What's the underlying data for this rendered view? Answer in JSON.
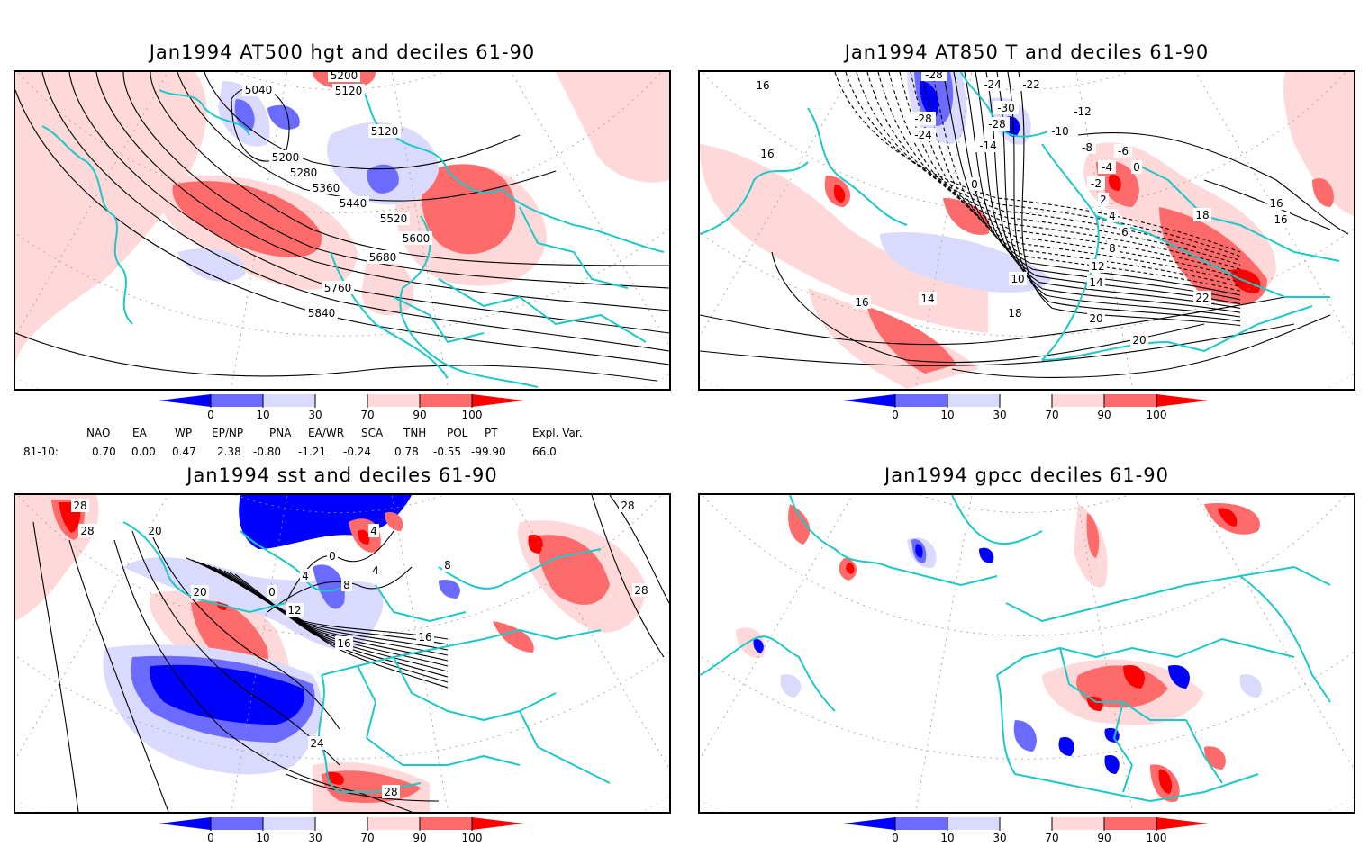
{
  "panels": [
    {
      "id": "z500",
      "title": "Jan1994 AT500 hgt and deciles 61-90",
      "variable": "500 hPa geopotential height",
      "contour_labels": [
        "5040",
        "5200",
        "5120",
        "5120",
        "5200",
        "5280",
        "5360",
        "5440",
        "5520",
        "5600",
        "5680",
        "5760",
        "5840"
      ]
    },
    {
      "id": "t850",
      "title": "Jan1994 AT850 T and deciles 61-90",
      "variable": "850 hPa temperature",
      "contour_labels": [
        "-28",
        "-28",
        "-24",
        "-24",
        "-30",
        "-28",
        "-22",
        "-14",
        "-12",
        "-10",
        "-8",
        "-6",
        "-4",
        "-2",
        "0",
        "0",
        "2",
        "4",
        "6",
        "8",
        "10",
        "12",
        "14",
        "14",
        "16",
        "16",
        "16",
        "16",
        "16",
        "18",
        "18",
        "20",
        "20",
        "22"
      ]
    },
    {
      "id": "sst",
      "title": "Jan1994 sst and deciles 61-90",
      "variable": "sea surface temperature",
      "contour_labels": [
        "28",
        "28",
        "20",
        "20",
        "0",
        "0",
        "4",
        "4",
        "8",
        "12",
        "16",
        "16",
        "24",
        "28",
        "28",
        "28",
        "4",
        "8"
      ]
    },
    {
      "id": "gpcc",
      "title": "Jan1994 gpcc deciles 61-90",
      "variable": "precipitation",
      "contour_labels": []
    }
  ],
  "colorbar": {
    "ticks": [
      "0",
      "10",
      "30",
      "70",
      "90",
      "100"
    ],
    "colors": {
      "below_0": "#0000ff",
      "0_10": "#6b6bff",
      "10_30": "#dadafe",
      "30_70": "#ffffff",
      "70_90": "#ffd9d9",
      "90_100": "#ff6b6b",
      "above_100": "#ff0000"
    }
  },
  "colors": {
    "coast": "#1ec8c8",
    "contour": "#000000",
    "grid": "#9a9a9a"
  },
  "indices": {
    "headers": [
      "NAO",
      "EA",
      "WP",
      "EP/NP",
      "PNA",
      "EA/WR",
      "SCA",
      "TNH",
      "POL",
      "PT",
      "Expl. Var."
    ],
    "row_label": "81-10:",
    "values": [
      "0.70",
      "0.00",
      "0.47",
      "2.38",
      "-0.80",
      "-1.21",
      "-0.24",
      "0.78",
      "-0.55",
      "-99.90",
      "66.0"
    ]
  },
  "chart_data": [
    {
      "type": "heatmap",
      "title": "Jan1994 AT500 hgt and deciles 61-90",
      "shading": "decile class (61-90 climatology)",
      "contour_variable": "500 hPa height (gpm)",
      "contour_levels": [
        5040,
        5120,
        5200,
        5280,
        5360,
        5440,
        5520,
        5600,
        5680,
        5760,
        5840
      ],
      "legend_ticks": [
        0,
        10,
        30,
        70,
        90,
        100
      ],
      "legend_position": "bottom",
      "grid": true
    },
    {
      "type": "heatmap",
      "title": "Jan1994 AT850 T and deciles 61-90",
      "shading": "decile class (61-90 climatology)",
      "contour_variable": "850 hPa temperature (C)",
      "contour_levels": [
        -30,
        -28,
        -24,
        -22,
        -14,
        -12,
        -10,
        -8,
        -6,
        -4,
        -2,
        0,
        2,
        4,
        6,
        8,
        10,
        12,
        14,
        16,
        18,
        20,
        22
      ],
      "legend_ticks": [
        0,
        10,
        30,
        70,
        90,
        100
      ],
      "legend_position": "bottom",
      "grid": true
    },
    {
      "type": "heatmap",
      "title": "Jan1994 sst and deciles 61-90",
      "shading": "decile class (61-90 climatology)",
      "contour_variable": "SST (C)",
      "contour_levels": [
        0,
        4,
        8,
        12,
        16,
        20,
        24,
        28
      ],
      "legend_ticks": [
        0,
        10,
        30,
        70,
        90,
        100
      ],
      "legend_position": "bottom",
      "grid": true
    },
    {
      "type": "heatmap",
      "title": "Jan1994 gpcc deciles 61-90",
      "shading": "precipitation decile class (61-90 climatology)",
      "legend_ticks": [
        0,
        10,
        30,
        70,
        90,
        100
      ],
      "legend_position": "bottom",
      "grid": true
    }
  ]
}
